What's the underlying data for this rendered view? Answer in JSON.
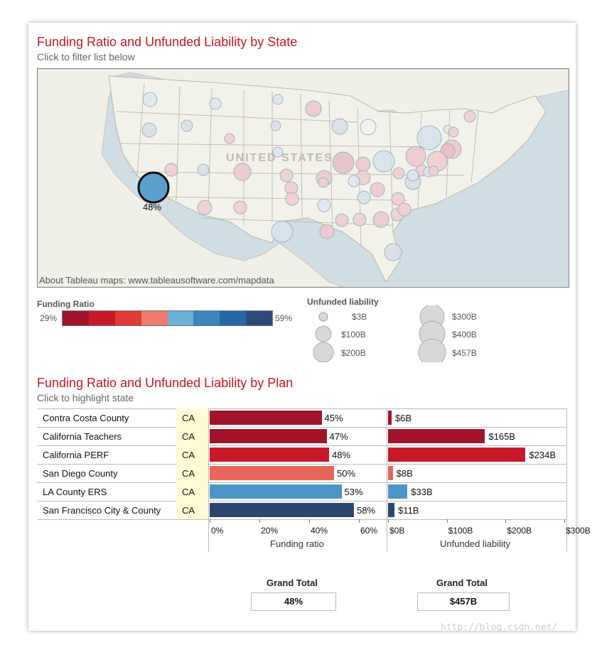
{
  "map_section": {
    "title": "Funding Ratio and Unfunded Liability by State",
    "subtitle": "Click to filter list below",
    "map_label": "UNITED STATES",
    "selected_state": "CA",
    "selected_label": "48%",
    "attribution": "About Tableau maps: www.tableausoftware.com/mapdata"
  },
  "legend": {
    "funding_ratio": {
      "title": "Funding Ratio",
      "min_label": "29%",
      "max_label": "59%",
      "colors": [
        "#a1142a",
        "#c8192a",
        "#de3a36",
        "#f07a6c",
        "#6baed6",
        "#3a86bf",
        "#2468a8",
        "#2d4a7a"
      ]
    },
    "unfunded_liability": {
      "title": "Unfunded liability",
      "sizes": [
        "$3B",
        "$100B",
        "$200B",
        "$300B",
        "$400B",
        "$457B"
      ]
    }
  },
  "plan_section": {
    "title": "Funding Ratio and Unfunded Liability by Plan",
    "subtitle": "Click to highlight state"
  },
  "chart_data": [
    {
      "type": "bubble-map",
      "title": "Funding Ratio and Unfunded Liability by State",
      "size_encoding": "Unfunded liability",
      "color_encoding": "Funding Ratio",
      "color_range": [
        "29%",
        "59%"
      ],
      "highlighted": {
        "state": "CA",
        "funding_ratio": 48
      }
    },
    {
      "type": "bar",
      "title": "Funding Ratio and Unfunded Liability by Plan",
      "categories": [
        "Contra Costa County",
        "California Teachers",
        "California PERF",
        "San Diego County",
        "LA County ERS",
        "San Francisco City & County"
      ],
      "state": [
        "CA",
        "CA",
        "CA",
        "CA",
        "CA",
        "CA"
      ],
      "series": [
        {
          "name": "Funding ratio",
          "values": [
            45,
            47,
            48,
            50,
            53,
            58
          ],
          "labels": [
            "45%",
            "47%",
            "48%",
            "50%",
            "53%",
            "58%"
          ],
          "xlim": [
            0,
            70
          ],
          "ticks": [
            "0%",
            "20%",
            "40%",
            "60%"
          ],
          "tick_values": [
            0,
            20,
            40,
            60
          ]
        },
        {
          "name": "Unfunded liability",
          "values": [
            6,
            165,
            234,
            8,
            33,
            11
          ],
          "labels": [
            "$6B",
            "$165B",
            "$234B",
            "$8B",
            "$33B",
            "$11B"
          ],
          "xlim": [
            0,
            300
          ],
          "ticks": [
            "$0B",
            "$100B",
            "$200B",
            "$300B"
          ],
          "tick_values": [
            0,
            100,
            200,
            300
          ]
        }
      ],
      "colors": [
        "#a1142a",
        "#a1142a",
        "#c8192a",
        "#e8655a",
        "#4b94c6",
        "#29476f"
      ],
      "xlabel_left": "Funding ratio",
      "xlabel_right": "Unfunded liability"
    }
  ],
  "grand_total": {
    "left_label": "Grand Total",
    "left_value": "48%",
    "right_label": "Grand Total",
    "right_value": "$457B"
  },
  "watermark": "http://blog.csdn.net/"
}
